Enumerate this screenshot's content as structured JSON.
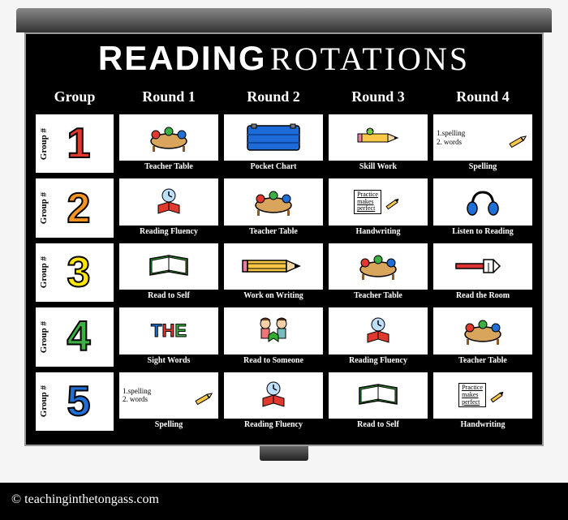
{
  "title": {
    "bold": "READING",
    "thin": "ROTATIONS"
  },
  "headers": [
    "Group",
    "Round 1",
    "Round 2",
    "Round 3",
    "Round 4"
  ],
  "groups": [
    {
      "num": "1",
      "color": "#e03a2f",
      "label": "Group #"
    },
    {
      "num": "2",
      "color": "#f7941d",
      "label": "Group #"
    },
    {
      "num": "3",
      "color": "#ffe600",
      "label": "Group #"
    },
    {
      "num": "4",
      "color": "#3cb043",
      "label": "Group #"
    },
    {
      "num": "5",
      "color": "#1f6fd6",
      "label": "Group #"
    }
  ],
  "cells": [
    [
      {
        "label": "Teacher Table",
        "icon": "teacher-table"
      },
      {
        "label": "Pocket Chart",
        "icon": "pocket-chart"
      },
      {
        "label": "Skill Work",
        "icon": "pencil"
      },
      {
        "label": "Spelling",
        "icon": "spelling-list"
      }
    ],
    [
      {
        "label": "Reading Fluency",
        "icon": "clock-book"
      },
      {
        "label": "Teacher Table",
        "icon": "teacher-table"
      },
      {
        "label": "Handwriting",
        "icon": "practice-box"
      },
      {
        "label": "Listen to Reading",
        "icon": "headphones"
      }
    ],
    [
      {
        "label": "Read to Self",
        "icon": "open-book"
      },
      {
        "label": "Work on Writing",
        "icon": "big-pencil"
      },
      {
        "label": "Teacher Table",
        "icon": "teacher-table"
      },
      {
        "label": "Read the Room",
        "icon": "pointer"
      }
    ],
    [
      {
        "label": "Sight Words",
        "icon": "sight-word-the"
      },
      {
        "label": "Read to Someone",
        "icon": "two-kids"
      },
      {
        "label": "Reading Fluency",
        "icon": "clock-book"
      },
      {
        "label": "Teacher Table",
        "icon": "teacher-table"
      }
    ],
    [
      {
        "label": "Spelling",
        "icon": "spelling-list"
      },
      {
        "label": "Reading Fluency",
        "icon": "clock-book"
      },
      {
        "label": "Read to Self",
        "icon": "open-book"
      },
      {
        "label": "Handwriting",
        "icon": "practice-box"
      }
    ]
  ],
  "spelling_lines": [
    "1.spelling",
    "2. words"
  ],
  "practice_lines": [
    "Practice",
    "makes",
    "perfect"
  ],
  "sight_word": {
    "letters": [
      "T",
      "H",
      "E"
    ],
    "colors": [
      "#1f6fd6",
      "#e03a2f",
      "#3cb043"
    ]
  },
  "credit_small": "© teachinginthetongass.com",
  "footer": "© teachinginthetongass.com",
  "pocket_chart_color": "#1c6bd8",
  "book_color": "#2fb02f",
  "headphone_color": "#1f6fd6"
}
